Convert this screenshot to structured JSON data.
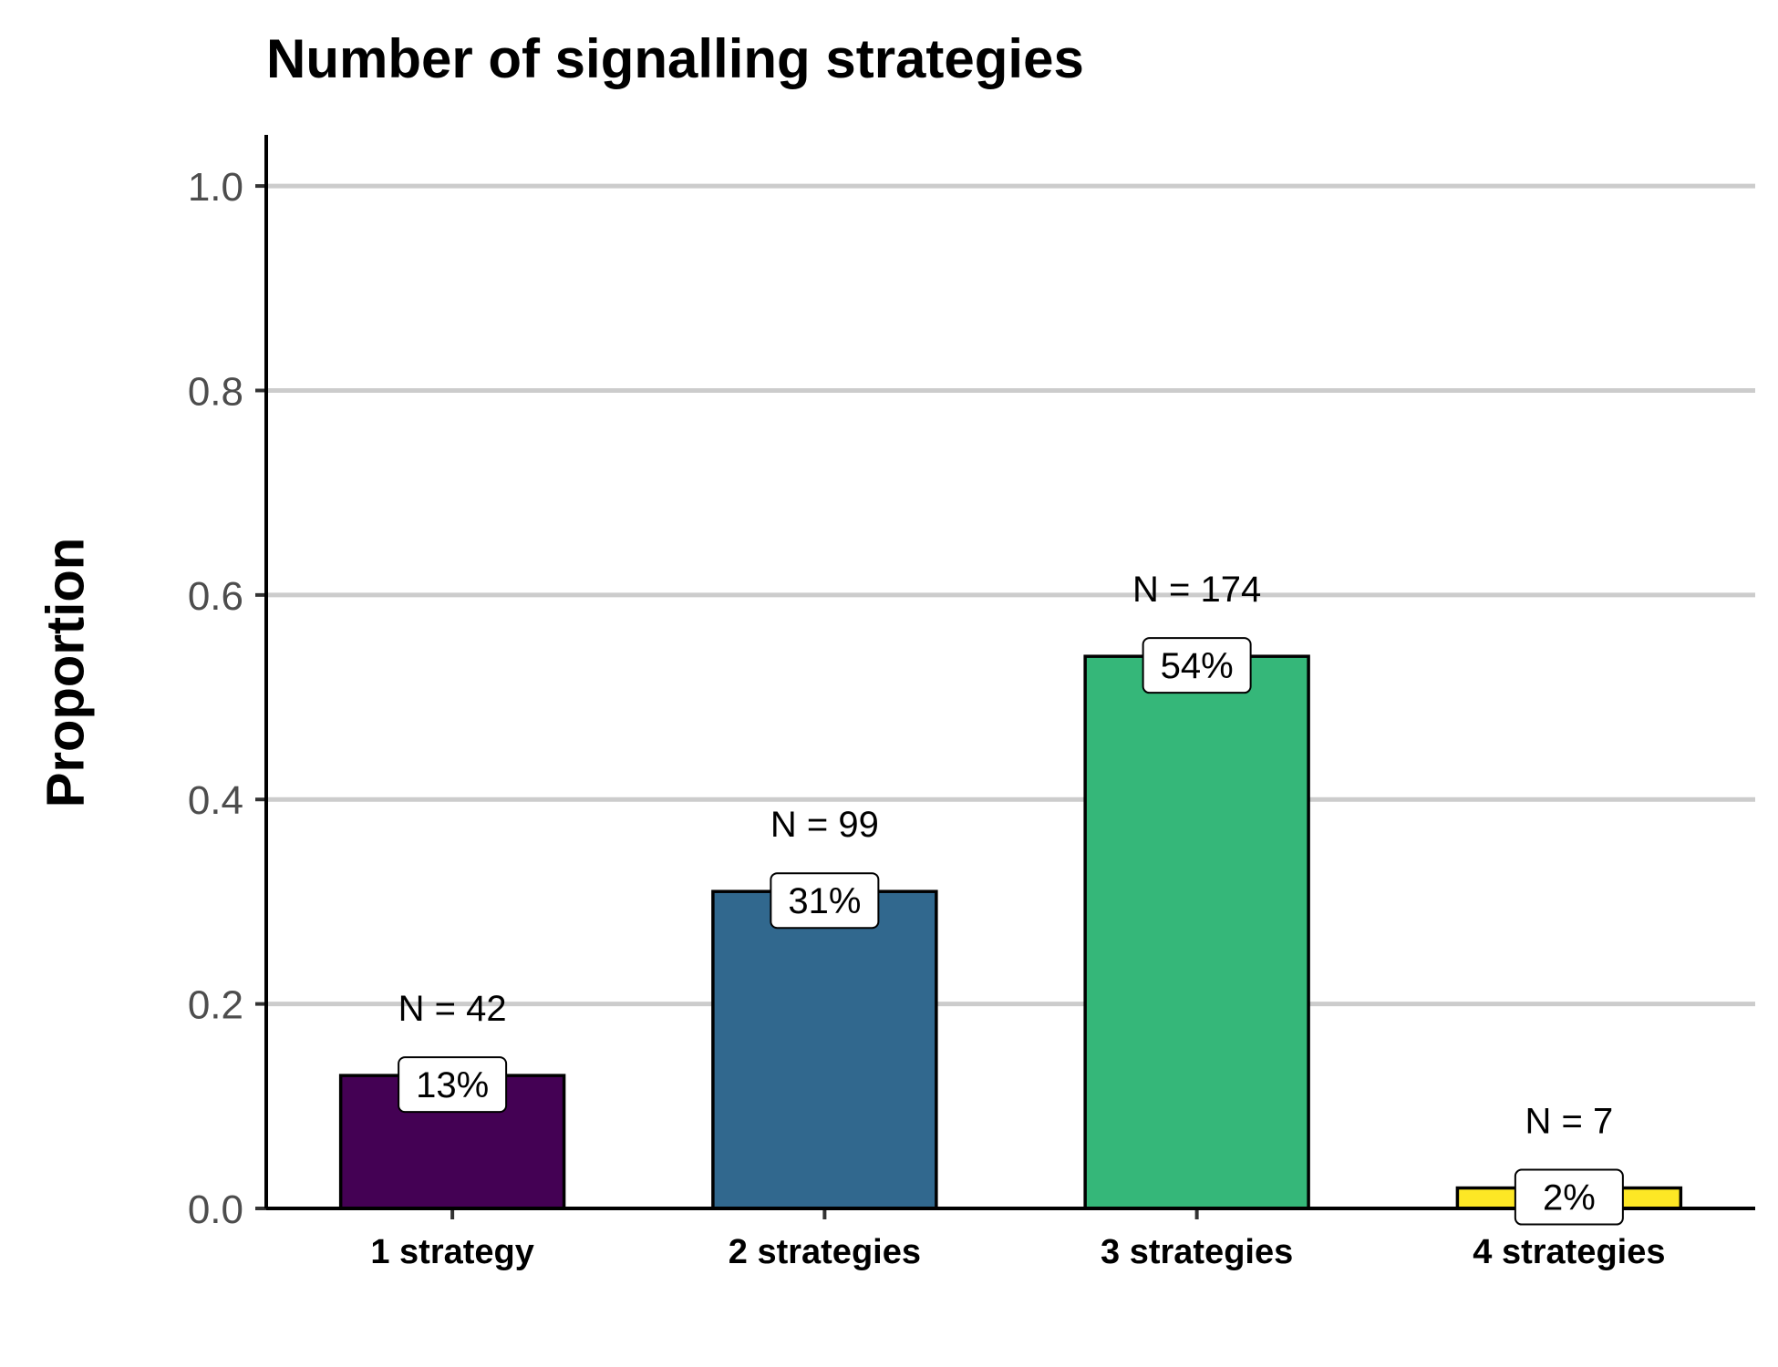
{
  "chart_data": {
    "type": "bar",
    "title": "Number of signalling strategies",
    "xlabel": "",
    "ylabel": "Proportion",
    "categories": [
      "1 strategy",
      "2 strategies",
      "3 strategies",
      "4 strategies"
    ],
    "values": [
      0.13,
      0.31,
      0.54,
      0.02
    ],
    "counts": [
      "N = 42",
      "N = 99",
      "N = 174",
      "N = 7"
    ],
    "percent_labels": [
      "13%",
      "31%",
      "54%",
      "2%"
    ],
    "colors": [
      "#440154",
      "#31688e",
      "#35b779",
      "#fde725"
    ],
    "ylim": [
      0,
      1.05
    ],
    "yticks": [
      0.0,
      0.2,
      0.4,
      0.6,
      0.8,
      1.0
    ],
    "ytick_labels": [
      "0.0",
      "0.2",
      "0.4",
      "0.6",
      "0.8",
      "1.0"
    ],
    "grid": "horizontal major",
    "legend": "none"
  }
}
